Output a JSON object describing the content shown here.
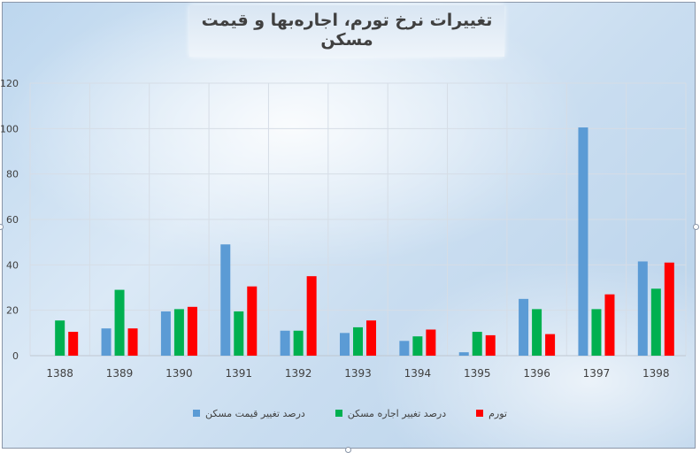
{
  "chart_data": {
    "type": "bar",
    "title": "تغییرات نرخ تورم، اجاره‌بها و قیمت مسکن",
    "xlabel": "",
    "ylabel": "",
    "ylim": [
      0,
      120
    ],
    "yticks": [
      0,
      20,
      40,
      60,
      80,
      100,
      120
    ],
    "grid": true,
    "legend_position": "bottom",
    "categories": [
      "1388",
      "1389",
      "1390",
      "1391",
      "1392",
      "1393",
      "1394",
      "1395",
      "1396",
      "1397",
      "1398"
    ],
    "series": [
      {
        "name": "درصد تغییر قیمت مسکن",
        "color": "#5b9bd5",
        "values": [
          0,
          12,
          19.5,
          49,
          11,
          10,
          6.5,
          1.5,
          25,
          100.5,
          41.5
        ]
      },
      {
        "name": "درصد تغییر اجاره مسکن",
        "color": "#00b050",
        "values": [
          15.5,
          29,
          20.5,
          19.5,
          11,
          12.5,
          8.5,
          10.5,
          20.5,
          20.5,
          29.5
        ]
      },
      {
        "name": "تورم",
        "color": "#ff0000",
        "values": [
          10.5,
          12,
          21.5,
          30.5,
          35,
          15.5,
          11.5,
          9,
          9.5,
          27,
          41
        ]
      }
    ]
  }
}
